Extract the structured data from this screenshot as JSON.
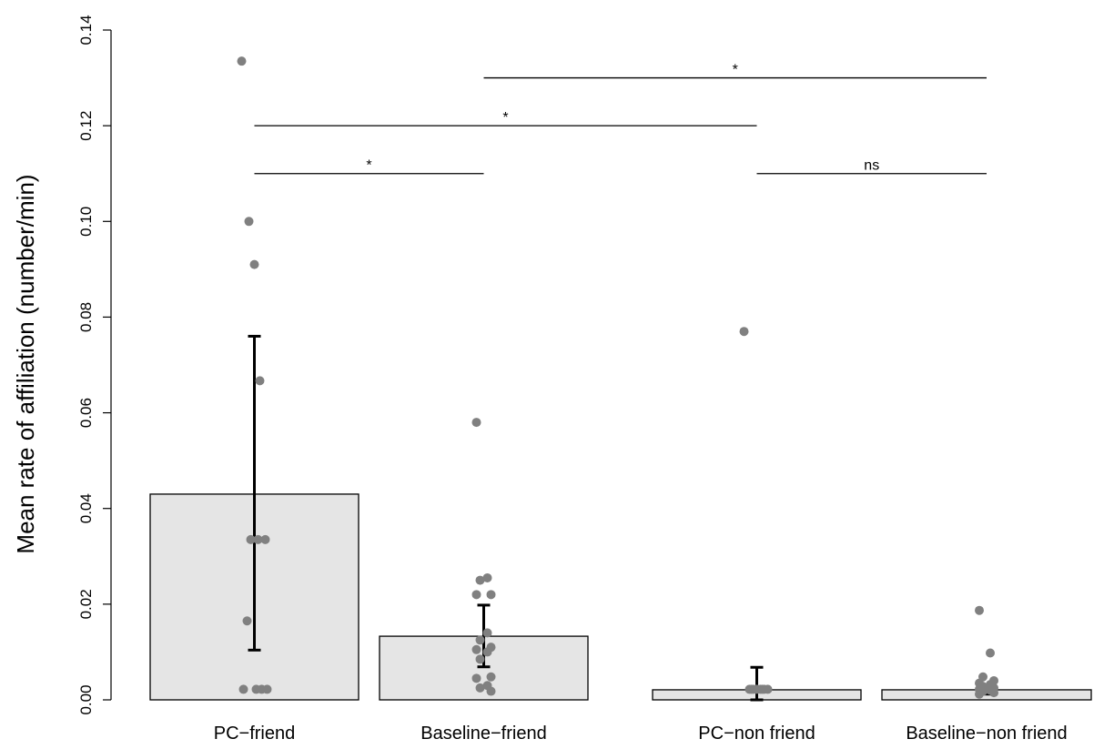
{
  "chart_data": {
    "type": "bar",
    "ylabel": "Mean rate of affiliation (number/min)",
    "ylim": [
      0,
      0.14
    ],
    "yticks": [
      "0.00",
      "0.02",
      "0.04",
      "0.06",
      "0.08",
      "0.10",
      "0.12",
      "0.14"
    ],
    "grid": false,
    "colors": {
      "bar": "#e5e5e5",
      "point": "#808080",
      "axis": "#000000"
    },
    "categories": [
      "PC−friend",
      "Baseline−friend",
      "PC−non friend",
      "Baseline−non friend"
    ],
    "values": [
      0.043,
      0.0133,
      0.0021,
      0.0021
    ],
    "error_bars": [
      {
        "low": 0.0104,
        "high": 0.076
      },
      {
        "low": 0.0069,
        "high": 0.0198
      },
      {
        "low": 0.0,
        "high": 0.0068
      },
      {
        "low": 0.0012,
        "high": 0.0031
      }
    ],
    "points": [
      [
        0.1335,
        0.1,
        0.091,
        0.0667,
        0.0335,
        0.0335,
        0.0335,
        0.0165,
        0.0022,
        0.0022,
        0.0022,
        0.0022
      ],
      [
        0.058,
        0.0255,
        0.025,
        0.022,
        0.022,
        0.014,
        0.0125,
        0.011,
        0.0105,
        0.01,
        0.0085,
        0.0048,
        0.0045,
        0.003,
        0.0025,
        0.0018
      ],
      [
        0.077,
        0.0022,
        0.0022,
        0.0022,
        0.0022,
        0.0022,
        0.0022,
        0.0022,
        0.0022
      ],
      [
        0.0187,
        0.0098,
        0.0048,
        0.004,
        0.0035,
        0.0032,
        0.0028,
        0.0025,
        0.0022,
        0.002,
        0.0018,
        0.0015,
        0.0012
      ]
    ],
    "comparisons": [
      {
        "from": 0,
        "to": 1,
        "y": 0.11,
        "label": "*"
      },
      {
        "from": 2,
        "to": 3,
        "y": 0.11,
        "label": "ns"
      },
      {
        "from": 0,
        "to": 2,
        "y": 0.12,
        "label": "*"
      },
      {
        "from": 1,
        "to": 3,
        "y": 0.13,
        "label": "*"
      }
    ]
  }
}
